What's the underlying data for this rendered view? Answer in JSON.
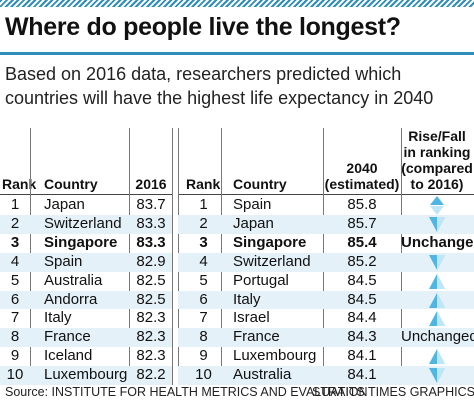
{
  "title": "Where do people live the longest?",
  "subtitle_line1": "Based on 2016 data, researchers predicted which",
  "subtitle_line2": "countries will have the highest life expectancy in 2040",
  "source": "Source: INSTITUTE FOR HEALTH METRICS AND EVALUATION",
  "credit": "STRAITS TIMES GRAPHICS",
  "colors": {
    "accent": "#2e8eb8",
    "stripe": "#e5f1f8",
    "arrow_light": "#bfe6f6",
    "arrow_dark": "#4fb6e3"
  },
  "chart_data": {
    "type": "table",
    "tables": [
      {
        "columns": [
          "Rank",
          "Country",
          "2016"
        ],
        "rows": [
          [
            "1",
            "Japan",
            "83.7"
          ],
          [
            "2",
            "Switzerland",
            "83.3"
          ],
          [
            "3",
            "Singapore",
            "83.3"
          ],
          [
            "4",
            "Spain",
            "82.9"
          ],
          [
            "5",
            "Australia",
            "82.5"
          ],
          [
            "6",
            "Andorra",
            "82.5"
          ],
          [
            "7",
            "Italy",
            "82.3"
          ],
          [
            "8",
            "France",
            "82.3"
          ],
          [
            "9",
            "Iceland",
            "82.3"
          ],
          [
            "10",
            "Luxembourg",
            "82.2"
          ]
        ]
      },
      {
        "columns": [
          "Rank",
          "Country",
          "2040 (estimated)",
          "Rise/Fall in ranking (compared to 2016)"
        ],
        "rows": [
          [
            "1",
            "Spain",
            "85.8",
            "up-down-icon"
          ],
          [
            "2",
            "Japan",
            "85.7",
            "down-icon"
          ],
          [
            "3",
            "Singapore",
            "85.4",
            "Unchanged"
          ],
          [
            "4",
            "Switzerland",
            "85.2",
            "down-icon"
          ],
          [
            "5",
            "Portugal",
            "84.5",
            "up-icon"
          ],
          [
            "6",
            "Italy",
            "84.5",
            "up-icon"
          ],
          [
            "7",
            "Israel",
            "84.4",
            "up-icon"
          ],
          [
            "8",
            "France",
            "84.3",
            "Unchanged"
          ],
          [
            "9",
            "Luxembourg",
            "84.1",
            "up-icon"
          ],
          [
            "10",
            "Australia",
            "84.1",
            "down-icon"
          ]
        ]
      }
    ],
    "highlight_row_index": 2,
    "rise_fall_header": [
      "Rise/Fall",
      "in ranking",
      "(compared",
      "to 2016)"
    ],
    "col2040_header": [
      "2040",
      "(estimated)"
    ]
  }
}
